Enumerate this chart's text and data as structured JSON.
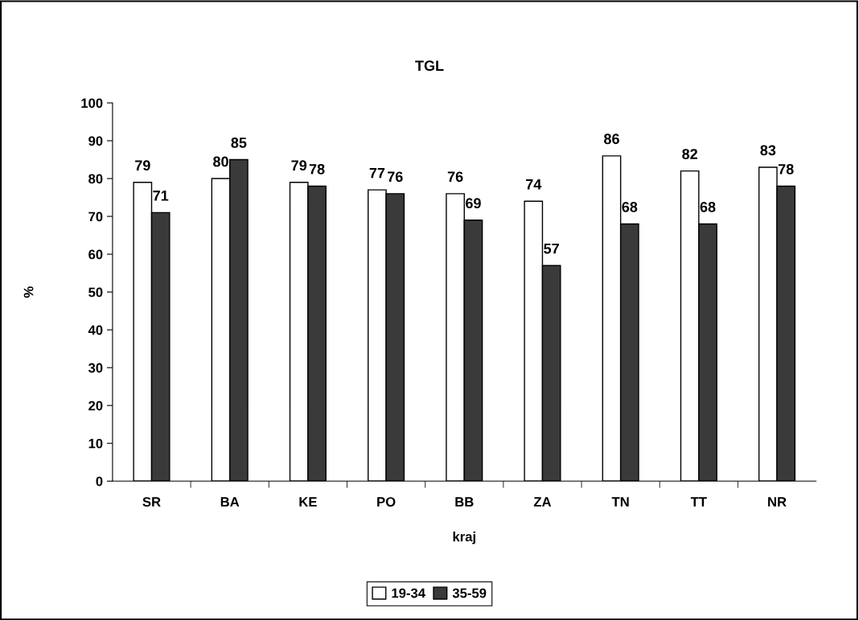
{
  "chart_data": {
    "type": "bar",
    "title": "TGL",
    "xlabel": "kraj",
    "ylabel": "%",
    "categories": [
      "SR",
      "BA",
      "KE",
      "PO",
      "BB",
      "ZA",
      "TN",
      "TT",
      "NR"
    ],
    "series": [
      {
        "name": "19-34",
        "color": "#ffffff",
        "values": [
          79,
          80,
          79,
          77,
          76,
          74,
          86,
          82,
          83
        ]
      },
      {
        "name": "35-59",
        "color": "#3a3a3a",
        "values": [
          71,
          85,
          78,
          76,
          69,
          57,
          68,
          68,
          78
        ]
      }
    ],
    "ylim": [
      0,
      100
    ],
    "yticks": [
      0,
      10,
      20,
      30,
      40,
      50,
      60,
      70,
      80,
      90,
      100
    ],
    "grid": false,
    "legend": "bottom",
    "data_labels": true
  }
}
